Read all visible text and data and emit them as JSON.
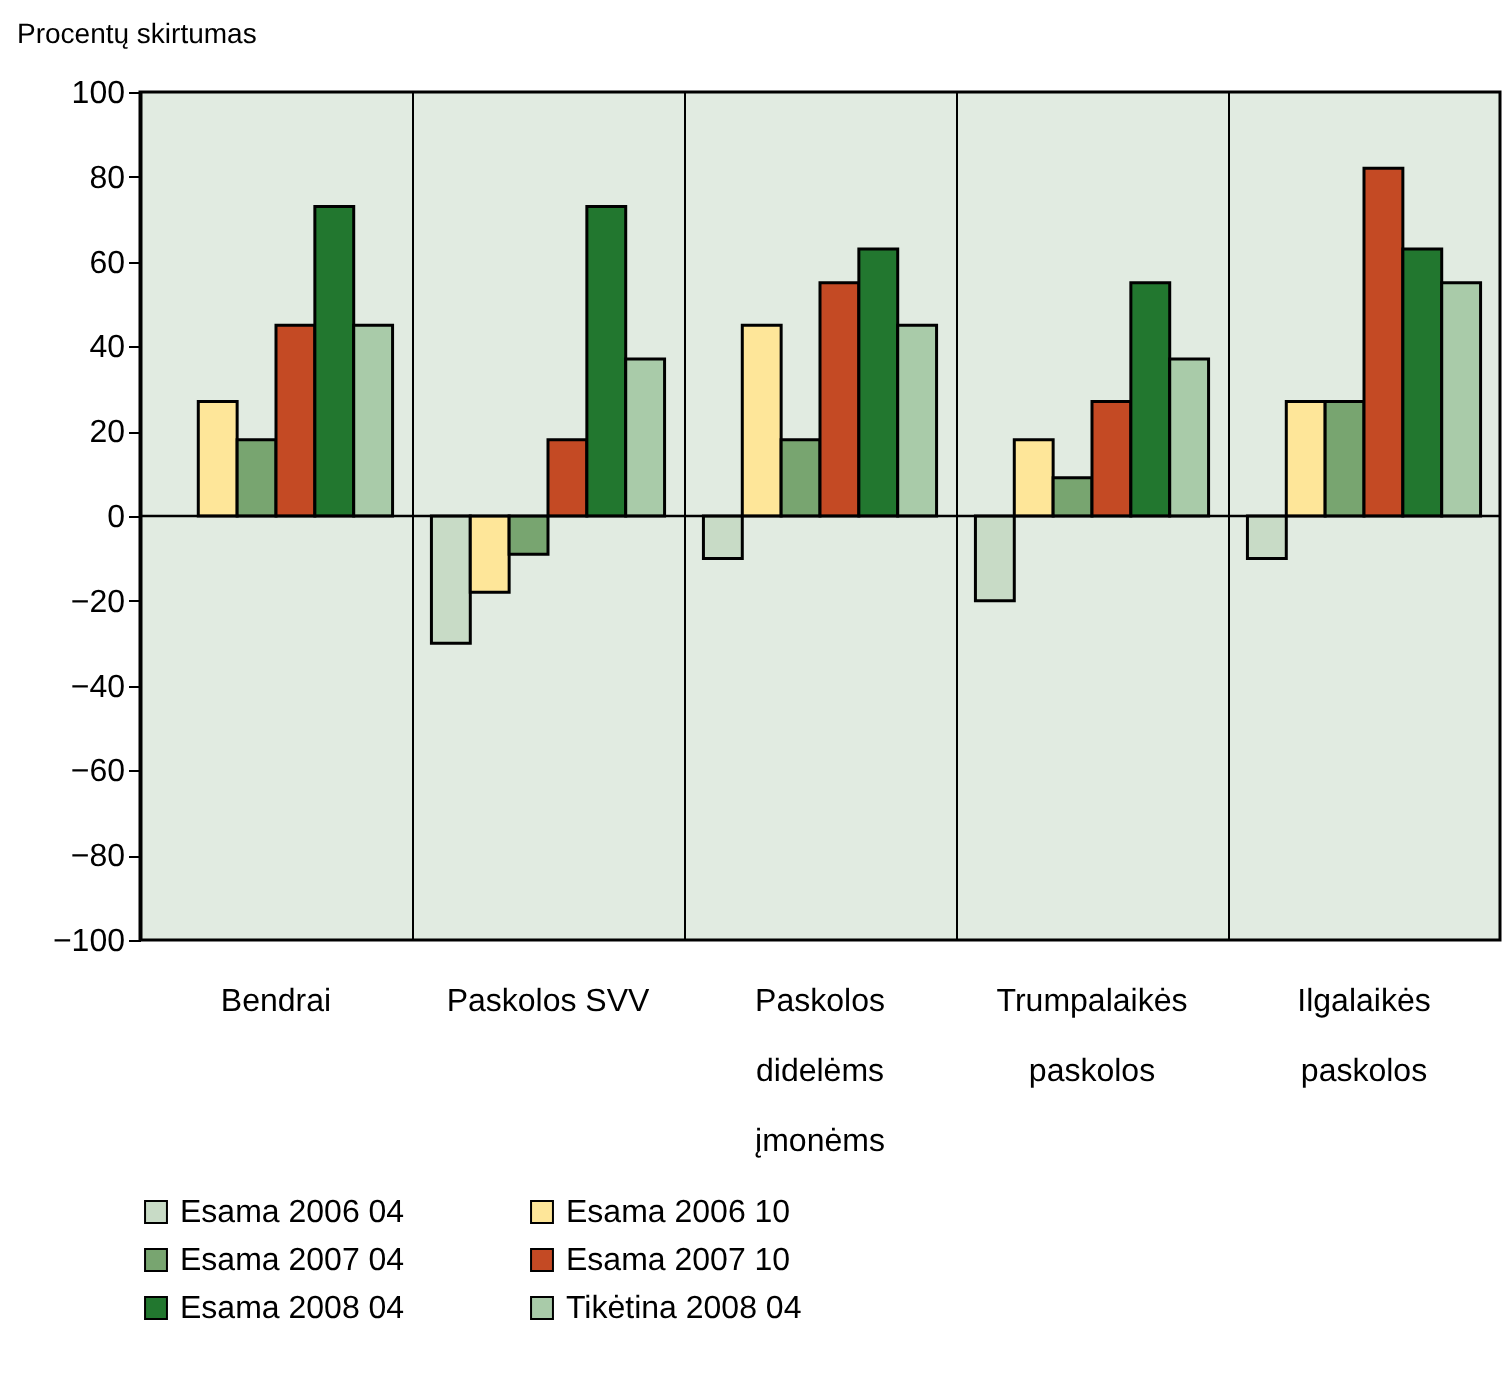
{
  "chart_data": {
    "type": "bar",
    "ylabel": "Procentų skirtumas",
    "categories": [
      "Bendrai",
      "Paskolos SVV",
      "Paskolos didelėms įmonėms",
      "Trumpalaikės paskolos",
      "Ilgalaikės paskolos"
    ],
    "series": [
      {
        "name": "Esama 2006 04",
        "color": "#c8dbc6",
        "values": [
          null,
          -30,
          -10,
          -20,
          -10
        ]
      },
      {
        "name": "Esama 2006 10",
        "color": "#fee699",
        "values": [
          27,
          -18,
          45,
          18,
          27
        ]
      },
      {
        "name": "Esama 2007 04",
        "color": "#78a570",
        "values": [
          18,
          -9,
          18,
          9,
          27
        ]
      },
      {
        "name": "Esama 2007 10",
        "color": "#c44a24",
        "values": [
          45,
          18,
          55,
          27,
          82
        ]
      },
      {
        "name": "Esama 2008 04",
        "color": "#22772f",
        "values": [
          73,
          73,
          63,
          55,
          63
        ]
      },
      {
        "name": "Tikėtina 2008 04",
        "color": "#a9cba9",
        "values": [
          45,
          37,
          45,
          37,
          55
        ]
      }
    ],
    "ylim": [
      -100,
      100
    ],
    "yticks": [
      -100,
      -80,
      -60,
      -40,
      -20,
      0,
      20,
      40,
      60,
      80,
      100
    ],
    "ref_lines": [
      {
        "axis": "y",
        "value": 0
      }
    ],
    "grid": "x",
    "legend": "bottom"
  }
}
